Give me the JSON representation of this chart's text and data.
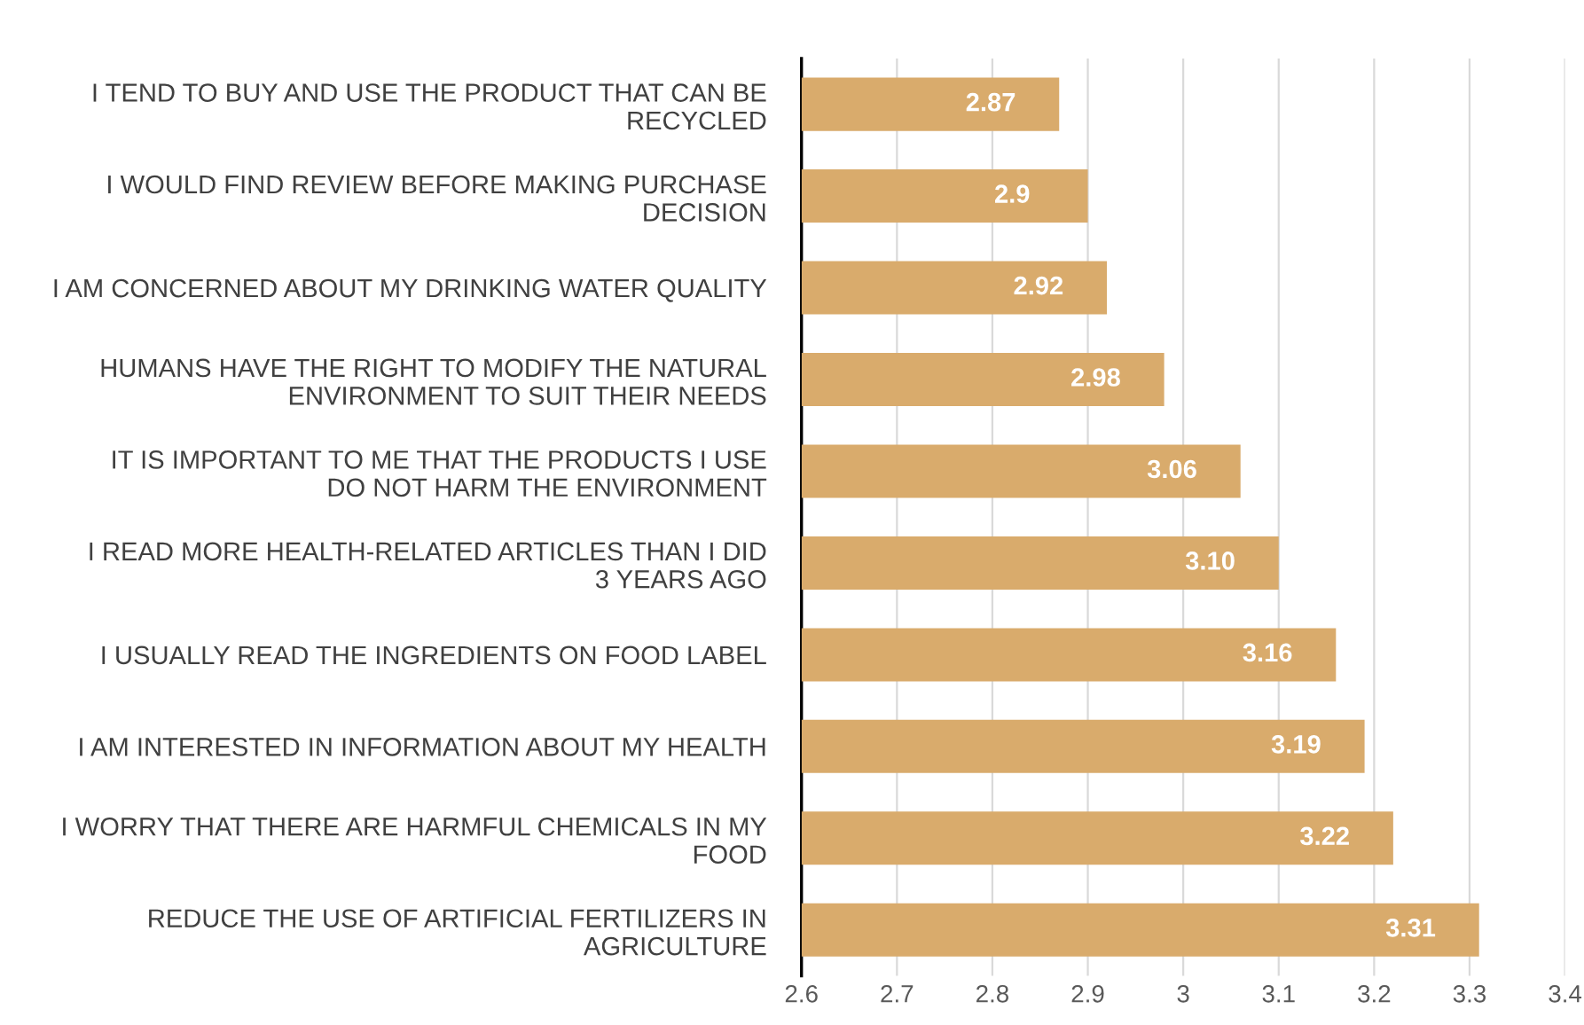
{
  "chart_data": {
    "type": "bar",
    "orientation": "horizontal",
    "categories": [
      "I TEND TO BUY AND USE THE PRODUCT THAT CAN BE RECYCLED",
      "I WOULD FIND REVIEW BEFORE MAKING PURCHASE DECISION",
      "I AM CONCERNED ABOUT MY DRINKING WATER QUALITY",
      "HUMANS HAVE THE RIGHT TO MODIFY THE NATURAL ENVIRONMENT TO SUIT THEIR NEEDS",
      "IT IS IMPORTANT TO ME THAT THE PRODUCTS I USE DO NOT HARM THE ENVIRONMENT",
      "I READ MORE HEALTH-RELATED ARTICLES THAN I DID 3 YEARS AGO",
      "I USUALLY READ THE INGREDIENTS ON FOOD LABEL",
      "I AM INTERESTED IN INFORMATION ABOUT MY HEALTH",
      "I WORRY THAT THERE ARE HARMFUL CHEMICALS IN MY FOOD",
      "REDUCE THE USE OF ARTIFICIAL FERTILIZERS IN AGRICULTURE"
    ],
    "values": [
      2.87,
      2.9,
      2.92,
      2.98,
      3.06,
      3.1,
      3.16,
      3.19,
      3.22,
      3.31
    ],
    "value_labels": [
      "2.87",
      "2.9",
      "2.92",
      "2.98",
      "3.06",
      "3.10",
      "3.16",
      "3.19",
      "3.22",
      "3.31"
    ],
    "color": "#d9ab6c",
    "xlim": [
      2.6,
      3.4
    ],
    "xticks": [
      2.6,
      2.7,
      2.8,
      2.9,
      3,
      3.1,
      3.2,
      3.3,
      3.4
    ],
    "grid": "x"
  }
}
